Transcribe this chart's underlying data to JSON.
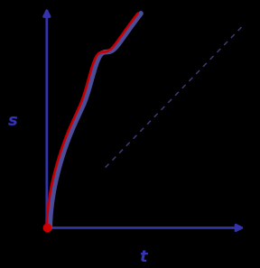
{
  "background_color": "#000000",
  "axis_color": "#3333aa",
  "red_dot_color": "#cc0000",
  "curve_color_red": "#cc0000",
  "curve_color_blue": "#5555aa",
  "dashed_color": "#5555aa",
  "xlabel": "t",
  "ylabel": "s",
  "xlabel_color": "#3333bb",
  "ylabel_color": "#3333bb",
  "label_fontsize": 13
}
